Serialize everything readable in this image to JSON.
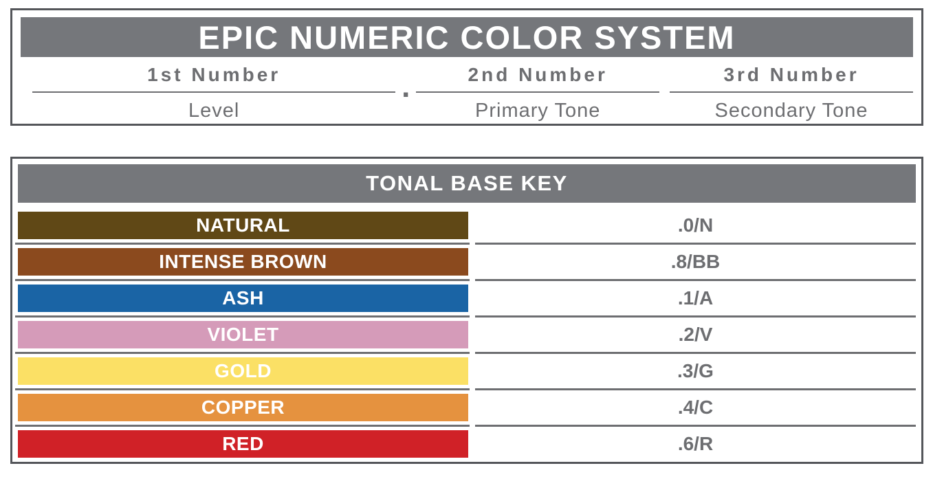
{
  "numeric_system": {
    "title": "EPIC NUMERIC COLOR SYSTEM",
    "separator": ".",
    "columns": [
      {
        "number": "1st Number",
        "meaning": "Level"
      },
      {
        "number": "2nd Number",
        "meaning": "Primary Tone"
      },
      {
        "number": "3rd Number",
        "meaning": "Secondary Tone"
      }
    ]
  },
  "tonal_base_key": {
    "title": "TONAL BASE KEY",
    "rows": [
      {
        "name": "NATURAL",
        "code": ".0/N",
        "color": "#604816"
      },
      {
        "name": "INTENSE BROWN",
        "code": ".8/BB",
        "color": "#8b4a1e"
      },
      {
        "name": "ASH",
        "code": ".1/A",
        "color": "#1a64a5"
      },
      {
        "name": "VIOLET",
        "code": ".2/V",
        "color": "#d59bb9"
      },
      {
        "name": "GOLD",
        "code": ".3/G",
        "color": "#fbe065"
      },
      {
        "name": "COPPER",
        "code": ".4/C",
        "color": "#e5923f"
      },
      {
        "name": "RED",
        "code": ".6/R",
        "color": "#d02127"
      }
    ]
  },
  "colors": {
    "header_gray": "#75777b",
    "border_gray": "#54565a",
    "divider_gray": "#6d6e71",
    "text_gray": "#6d6e71"
  }
}
